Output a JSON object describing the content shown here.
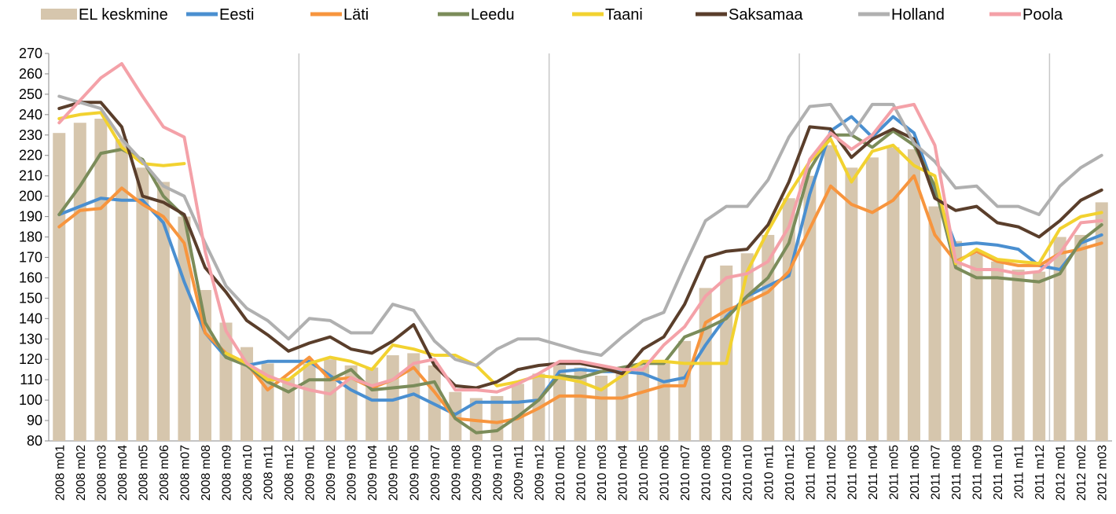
{
  "chart_data": {
    "type": "bar-line",
    "categories": [
      "2008 m01",
      "2008 m02",
      "2008 m03",
      "2008 m04",
      "2008 m05",
      "2008 m06",
      "2008 m07",
      "2008 m08",
      "2008 m09",
      "2008 m10",
      "2008 m11",
      "2008 m12",
      "2009 m01",
      "2009 m02",
      "2009 m03",
      "2009 m04",
      "2009 m05",
      "2009 m06",
      "2009 m07",
      "2009 m08",
      "2009 m09",
      "2009 m10",
      "2009 m11",
      "2009 m12",
      "2010 m01",
      "2010 m02",
      "2010 m03",
      "2010 m04",
      "2010 m05",
      "2010 m06",
      "2010 m07",
      "2010 m08",
      "2010 m09",
      "2010 m10",
      "2010 m11",
      "2010 m12",
      "2011 m01",
      "2011 m02",
      "2011 m03",
      "2011 m04",
      "2011 m05",
      "2011 m06",
      "2011 m07",
      "2011 m08",
      "2011 m09",
      "2011 m10",
      "2011 m11",
      "2011 m12",
      "2012 m01",
      "2012 m02",
      "2012 m03"
    ],
    "series": [
      {
        "name": "EL keskmine",
        "kind": "bar",
        "color": "#d6c6ad",
        "values": [
          231,
          236,
          238,
          228,
          214,
          207,
          190,
          154,
          138,
          126,
          118,
          111,
          118,
          120,
          117,
          116,
          122,
          123,
          117,
          104,
          101,
          102,
          108,
          113,
          117,
          116,
          112,
          113,
          117,
          119,
          129,
          155,
          166,
          172,
          181,
          199,
          210,
          225,
          214,
          219,
          224,
          223,
          195,
          178,
          172,
          168,
          164,
          163,
          180,
          181,
          197
        ]
      },
      {
        "name": "Eesti",
        "kind": "line",
        "color": "#4a8fd0",
        "values": [
          191,
          195,
          199,
          198,
          198,
          187,
          158,
          133,
          121,
          117,
          119,
          119,
          119,
          112,
          105,
          100,
          100,
          103,
          98,
          93,
          99,
          99,
          99,
          100,
          114,
          115,
          114,
          114,
          113,
          109,
          111,
          127,
          141,
          151,
          156,
          161,
          201,
          232,
          239,
          229,
          239,
          231,
          203,
          176,
          177,
          176,
          174,
          166,
          164,
          177,
          181
        ]
      },
      {
        "name": "Läti",
        "kind": "line",
        "color": "#f7953e",
        "values": [
          185,
          193,
          194,
          204,
          196,
          190,
          177,
          133,
          123,
          118,
          105,
          113,
          121,
          110,
          111,
          106,
          110,
          116,
          104,
          91,
          90,
          89,
          91,
          96,
          102,
          102,
          101,
          101,
          104,
          107,
          107,
          138,
          144,
          148,
          153,
          163,
          184,
          205,
          196,
          192,
          198,
          210,
          181,
          168,
          173,
          168,
          166,
          166,
          172,
          174,
          177
        ]
      },
      {
        "name": "Leedu",
        "kind": "line",
        "color": "#7b8c5a",
        "values": [
          191,
          205,
          221,
          223,
          218,
          200,
          190,
          138,
          121,
          117,
          109,
          104,
          110,
          110,
          115,
          105,
          106,
          107,
          109,
          91,
          84,
          85,
          92,
          100,
          112,
          111,
          114,
          116,
          118,
          118,
          131,
          135,
          140,
          151,
          160,
          177,
          213,
          230,
          230,
          224,
          232,
          225,
          205,
          165,
          160,
          160,
          159,
          158,
          162,
          178,
          186
        ]
      },
      {
        "name": "Taani",
        "kind": "line",
        "color": "#f2d230",
        "values": [
          238,
          240,
          241,
          224,
          216,
          215,
          216,
          null,
          123,
          118,
          110,
          110,
          118,
          121,
          119,
          115,
          127,
          125,
          122,
          122,
          117,
          107,
          109,
          112,
          111,
          109,
          105,
          112,
          119,
          119,
          118,
          118,
          118,
          163,
          183,
          201,
          217,
          228,
          207,
          222,
          225,
          215,
          210,
          167,
          174,
          169,
          168,
          167,
          184,
          190,
          192
        ]
      },
      {
        "name": "Saksamaa",
        "kind": "line",
        "color": "#5a3e2b",
        "values": [
          243,
          246,
          246,
          234,
          200,
          197,
          191,
          165,
          153,
          139,
          132,
          124,
          128,
          131,
          125,
          123,
          129,
          137,
          117,
          107,
          106,
          109,
          115,
          117,
          118,
          118,
          116,
          113,
          125,
          131,
          147,
          170,
          173,
          174,
          186,
          207,
          234,
          233,
          219,
          228,
          233,
          228,
          199,
          193,
          195,
          187,
          185,
          180,
          188,
          198,
          203
        ]
      },
      {
        "name": "Holland",
        "kind": "line",
        "color": "#b0b0b0",
        "values": [
          249,
          246,
          243,
          228,
          217,
          205,
          200,
          177,
          156,
          145,
          139,
          130,
          140,
          139,
          133,
          133,
          147,
          144,
          129,
          120,
          117,
          125,
          130,
          130,
          127,
          124,
          122,
          131,
          139,
          143,
          166,
          188,
          195,
          195,
          208,
          229,
          244,
          245,
          230,
          245,
          245,
          226,
          217,
          204,
          205,
          195,
          195,
          191,
          205,
          214,
          220
        ]
      },
      {
        "name": "Poola",
        "kind": "line",
        "color": "#f4a1a8",
        "values": [
          236,
          247,
          258,
          265,
          249,
          234,
          229,
          173,
          134,
          118,
          112,
          108,
          105,
          103,
          111,
          107,
          110,
          118,
          120,
          105,
          105,
          104,
          108,
          113,
          119,
          119,
          117,
          115,
          115,
          127,
          136,
          151,
          160,
          162,
          168,
          185,
          218,
          231,
          223,
          230,
          243,
          245,
          225,
          168,
          164,
          164,
          162,
          163,
          172,
          187,
          188
        ]
      }
    ],
    "ylim": [
      80,
      270
    ],
    "yticks": [
      80,
      90,
      100,
      110,
      120,
      130,
      140,
      150,
      160,
      170,
      180,
      190,
      200,
      210,
      220,
      230,
      240,
      250,
      260,
      270
    ]
  }
}
